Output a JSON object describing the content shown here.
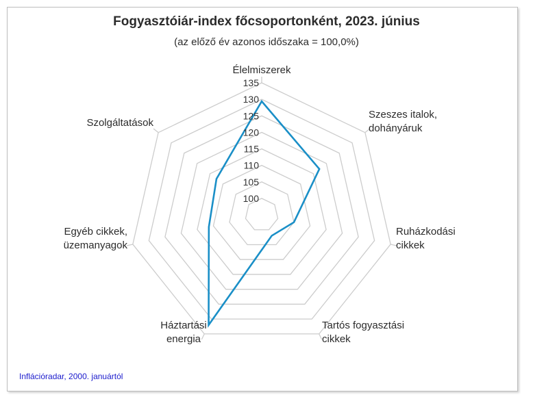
{
  "chart_data": {
    "type": "radar",
    "title": "Fogyasztóiár-index főcsoportonként, 2023. június",
    "subtitle": "(az előző év azonos időszaka = 100,0%)",
    "categories": [
      [
        "Élelmiszerek"
      ],
      [
        "Szeszes italok,",
        "dohányáruk"
      ],
      [
        "Ruházkodási",
        "cikkek"
      ],
      [
        "Tartós fogyasztási",
        "cikkek"
      ],
      [
        "Háztartási",
        "energia"
      ],
      [
        "Egyéb cikkek,",
        "üzemanyagok"
      ],
      [
        "Szolgáltatások"
      ]
    ],
    "values": [
      129.4,
      117.3,
      105.0,
      102.0,
      132.0,
      111.4,
      112.5
    ],
    "rlim": [
      95,
      135
    ],
    "ticks": [
      100,
      105,
      110,
      115,
      120,
      125,
      130,
      135
    ],
    "grid": true,
    "line_color": "#1a8fc7",
    "grid_color": "#cccccc"
  },
  "footer": "Inflációradar, 2000. januártól"
}
